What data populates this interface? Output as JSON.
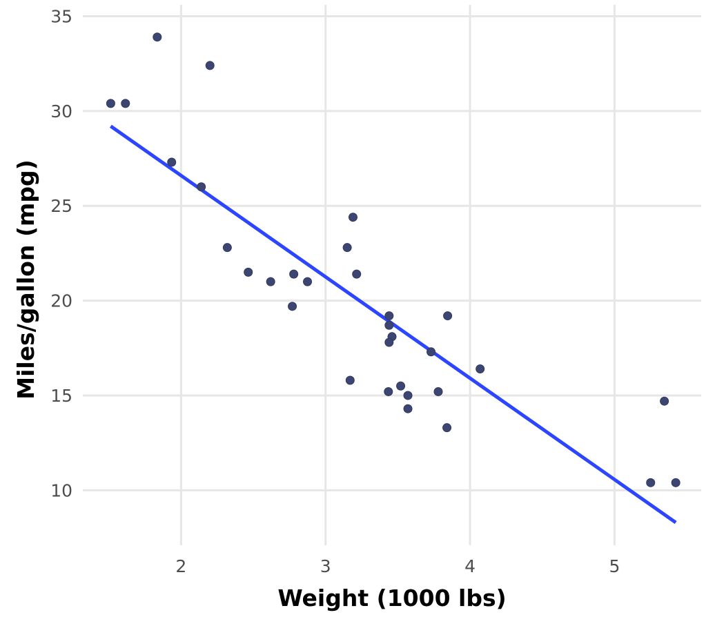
{
  "chart_data": {
    "type": "scatter",
    "title": "",
    "xlabel": "Weight (1000 lbs)",
    "ylabel": "Miles/gallon (mpg)",
    "xlim": [
      1.32,
      5.6
    ],
    "ylim": [
      7.1,
      35.6
    ],
    "x_ticks": [
      2,
      3,
      4,
      5
    ],
    "y_ticks": [
      10,
      15,
      20,
      25,
      30,
      35
    ],
    "grid": true,
    "legend": "none",
    "point_color": "#3c4670",
    "line_color": "#2c46ff",
    "points": {
      "x": [
        2.62,
        2.875,
        2.32,
        3.215,
        3.44,
        3.46,
        3.57,
        3.19,
        3.15,
        3.44,
        3.44,
        4.07,
        3.73,
        3.78,
        5.25,
        5.424,
        5.345,
        2.2,
        1.615,
        1.835,
        2.465,
        3.52,
        3.435,
        3.84,
        3.845,
        1.935,
        2.14,
        1.513,
        3.17,
        2.77,
        3.57,
        2.78
      ],
      "y": [
        21.0,
        21.0,
        22.8,
        21.4,
        18.7,
        18.1,
        14.3,
        24.4,
        22.8,
        19.2,
        17.8,
        16.4,
        17.3,
        15.2,
        10.4,
        10.4,
        14.7,
        32.4,
        30.4,
        33.9,
        21.5,
        15.5,
        15.2,
        13.3,
        19.2,
        27.3,
        26.0,
        30.4,
        15.8,
        19.7,
        15.0,
        21.4
      ]
    },
    "fit_line": {
      "x": [
        1.513,
        5.424
      ],
      "y": [
        29.2,
        8.3
      ]
    }
  }
}
